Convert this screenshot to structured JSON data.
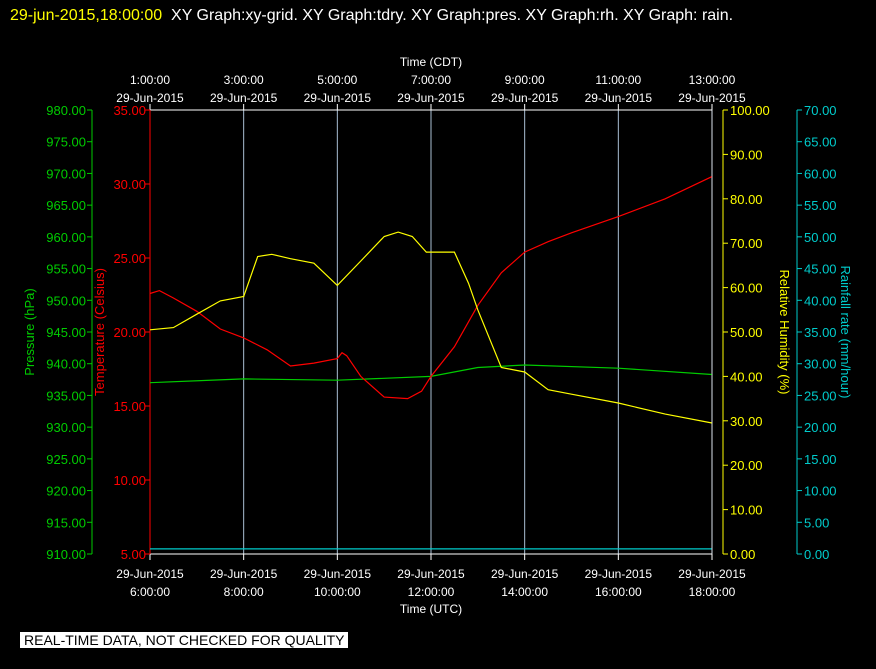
{
  "title": {
    "timestamp": "29-jun-2015,18:00:00",
    "graphs": "XY Graph:xy-grid.  XY Graph:tdry.  XY Graph:pres.  XY Graph:rh.  XY Graph: rain."
  },
  "notice": "REAL-TIME DATA, NOT CHECKED FOR QUALITY",
  "colors": {
    "background": "#000000",
    "grid": "#aabfd4",
    "pressure": "#00cc00",
    "temperature": "#ff0000",
    "humidity": "#ffff00",
    "rain": "#00cccc",
    "text": "#ffffff"
  },
  "chart_data": {
    "type": "line",
    "x_top": {
      "label": "Time (CDT)",
      "ticks": [
        {
          "time": "1:00:00",
          "date": "29-Jun-2015"
        },
        {
          "time": "3:00:00",
          "date": "29-Jun-2015"
        },
        {
          "time": "5:00:00",
          "date": "29-Jun-2015"
        },
        {
          "time": "7:00:00",
          "date": "29-Jun-2015"
        },
        {
          "time": "9:00:00",
          "date": "29-Jun-2015"
        },
        {
          "time": "11:00:00",
          "date": "29-Jun-2015"
        },
        {
          "time": "13:00:00",
          "date": "29-Jun-2015"
        }
      ]
    },
    "x_bottom": {
      "label": "Time (UTC)",
      "ticks": [
        {
          "date": "29-Jun-2015",
          "time": "6:00:00"
        },
        {
          "date": "29-Jun-2015",
          "time": "8:00:00"
        },
        {
          "date": "29-Jun-2015",
          "time": "10:00:00"
        },
        {
          "date": "29-Jun-2015",
          "time": "12:00:00"
        },
        {
          "date": "29-Jun-2015",
          "time": "14:00:00"
        },
        {
          "date": "29-Jun-2015",
          "time": "16:00:00"
        },
        {
          "date": "29-Jun-2015",
          "time": "18:00:00"
        }
      ]
    },
    "x_range_utc_hours": [
      6,
      18
    ],
    "grid": true,
    "axes": {
      "pressure": {
        "label": "Pressure (hPa)",
        "range": [
          910,
          980
        ],
        "ticks": [
          "910.00",
          "915.00",
          "920.00",
          "925.00",
          "930.00",
          "935.00",
          "940.00",
          "945.00",
          "950.00",
          "955.00",
          "960.00",
          "965.00",
          "970.00",
          "975.00",
          "980.00"
        ]
      },
      "temperature": {
        "label": "Temperature (Celsius)",
        "range": [
          5,
          35
        ],
        "ticks": [
          "5.00",
          "10.00",
          "15.00",
          "20.00",
          "25.00",
          "30.00",
          "35.00"
        ]
      },
      "humidity": {
        "label": "Relative Humidity (%)",
        "range": [
          0,
          100
        ],
        "ticks": [
          "0.00",
          "10.00",
          "20.00",
          "30.00",
          "40.00",
          "50.00",
          "60.00",
          "70.00",
          "80.00",
          "90.00",
          "100.00"
        ]
      },
      "rain": {
        "label": "Rainfall rate (mm/hour)",
        "range": [
          0,
          70
        ],
        "ticks": [
          "0.00",
          "5.00",
          "10.00",
          "15.00",
          "20.00",
          "25.00",
          "30.00",
          "35.00",
          "40.00",
          "45.00",
          "50.00",
          "55.00",
          "60.00",
          "65.00",
          "70.00"
        ]
      }
    },
    "series": [
      {
        "name": "Pressure",
        "axis": "pressure",
        "x": [
          6,
          8,
          10,
          12,
          13,
          14,
          16,
          18
        ],
        "y": [
          937.0,
          937.6,
          937.4,
          938.0,
          939.4,
          939.8,
          939.3,
          938.3
        ]
      },
      {
        "name": "Temperature",
        "axis": "temperature",
        "x": [
          6,
          6.2,
          6.5,
          7,
          7.5,
          8,
          8.5,
          9,
          9.5,
          10,
          10.1,
          10.2,
          10.5,
          11,
          11.5,
          11.8,
          12,
          12.5,
          13,
          13.5,
          14,
          14.5,
          15,
          16,
          17,
          18
        ],
        "y": [
          22.6,
          22.8,
          22.3,
          21.4,
          20.2,
          19.6,
          18.8,
          17.7,
          17.9,
          18.2,
          18.6,
          18.4,
          17.0,
          15.6,
          15.5,
          16.0,
          17.0,
          19.0,
          21.8,
          24.0,
          25.4,
          26.1,
          26.7,
          27.8,
          29.0,
          30.5
        ]
      },
      {
        "name": "Relative Humidity",
        "axis": "humidity",
        "x": [
          6,
          6.5,
          7,
          7.5,
          8,
          8.3,
          8.6,
          9,
          9.5,
          10,
          10.5,
          11,
          11.3,
          11.6,
          11.9,
          12,
          12.2,
          12.5,
          12.8,
          13,
          13.5,
          14,
          14.5,
          15,
          16,
          17,
          18
        ],
        "y": [
          50.5,
          51,
          54,
          57,
          58,
          67,
          67.5,
          66.5,
          65.5,
          60.5,
          66,
          71.5,
          72.5,
          71.5,
          68,
          68,
          68,
          68,
          61,
          55,
          42,
          41,
          37,
          36,
          34,
          31.5,
          29.5
        ]
      },
      {
        "name": "Rainfall rate",
        "axis": "rain",
        "x": [
          6,
          18
        ],
        "y": [
          0.8,
          0.8
        ]
      }
    ]
  }
}
